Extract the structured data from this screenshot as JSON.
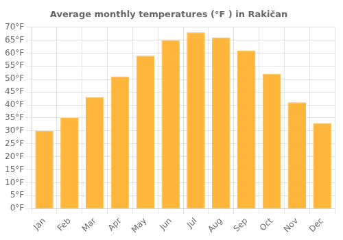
{
  "chart_data": {
    "type": "bar",
    "title": "Average monthly temperatures (°F ) in Rakičan",
    "categories": [
      "Jan",
      "Feb",
      "Mar",
      "Apr",
      "May",
      "Jun",
      "Jul",
      "Aug",
      "Sep",
      "Oct",
      "Nov",
      "Dec"
    ],
    "values": [
      30,
      35,
      43,
      51,
      59,
      65,
      68,
      66,
      61,
      52,
      41,
      33
    ],
    "color": "#FDB63B",
    "ylim": [
      0,
      70
    ],
    "yticks": [
      {
        "value": 0,
        "label": "0°F"
      },
      {
        "value": 5,
        "label": "5°F"
      },
      {
        "value": 10,
        "label": "10°F"
      },
      {
        "value": 15,
        "label": "15°F"
      },
      {
        "value": 20,
        "label": "20°F"
      },
      {
        "value": 25,
        "label": "25°F"
      },
      {
        "value": 30,
        "label": "30°F"
      },
      {
        "value": 35,
        "label": "35°F"
      },
      {
        "value": 40,
        "label": "40°F"
      },
      {
        "value": 45,
        "label": "45°F"
      },
      {
        "value": 50,
        "label": "50°F"
      },
      {
        "value": 55,
        "label": "55°F"
      },
      {
        "value": 60,
        "label": "60°F"
      },
      {
        "value": 65,
        "label": "65°F"
      },
      {
        "value": 70,
        "label": "70°F"
      }
    ],
    "grid": true
  }
}
